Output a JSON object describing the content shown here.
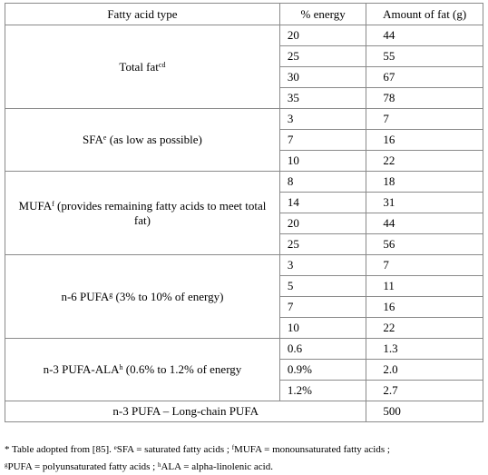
{
  "table": {
    "header": [
      "Fatty acid type",
      "% energy",
      "Amount of fat (g)"
    ],
    "groups": [
      {
        "label": "Total fat",
        "sup": "cd",
        "rest": "",
        "rows": [
          [
            "20",
            "44"
          ],
          [
            "25",
            "55"
          ],
          [
            "30",
            "67"
          ],
          [
            "35",
            "78"
          ]
        ]
      },
      {
        "label": "SFA",
        "sup": "e",
        "rest": " (as low as possible)",
        "rows": [
          [
            "3",
            "7"
          ],
          [
            "7",
            "16"
          ],
          [
            "10",
            "22"
          ]
        ]
      },
      {
        "label": "MUFA",
        "sup": "f",
        "rest": " (provides remaining fatty acids to meet total fat)",
        "rows": [
          [
            "8",
            "18"
          ],
          [
            "14",
            "31"
          ],
          [
            "20",
            "44"
          ],
          [
            "25",
            "56"
          ]
        ]
      },
      {
        "label": "n-6 PUFA",
        "sup": "g",
        "rest": " (3% to 10% of energy)",
        "rows": [
          [
            "3",
            "7"
          ],
          [
            "5",
            "11"
          ],
          [
            "7",
            "16"
          ],
          [
            "10",
            "22"
          ]
        ]
      },
      {
        "label": "n-3 PUFA-ALA",
        "sup": "h",
        "rest": " (0.6% to 1.2% of energy",
        "rows": [
          [
            "0.6",
            "1.3"
          ],
          [
            "0.9%",
            "2.0"
          ],
          [
            "1.2%",
            "2.7"
          ]
        ]
      }
    ],
    "last_row": {
      "label": "n-3 PUFA – Long-chain PUFA",
      "value": "500"
    }
  },
  "footnote": {
    "lines": [
      [
        {
          "text": "* Table adopted from [85]. "
        },
        {
          "sup": "e"
        },
        {
          "text": "SFA = saturated fatty acids ; "
        },
        {
          "sup": "f"
        },
        {
          "text": "MUFA = monounsaturated fatty acids ;"
        }
      ],
      [
        {
          "sup": "g"
        },
        {
          "text": "PUFA = polyunsaturated fatty acids ; "
        },
        {
          "sup": "h"
        },
        {
          "text": "ALA = alpha-linolenic acid."
        }
      ]
    ]
  }
}
